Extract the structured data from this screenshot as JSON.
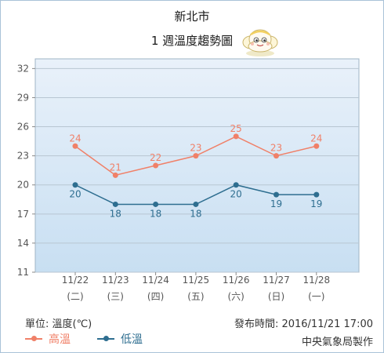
{
  "header": {
    "city": "新北市",
    "subtitle": "1 週溫度趨勢圖"
  },
  "footer": {
    "unit_label": "單位: 溫度(℃)",
    "published_label": "發布時間: 2016/11/21 17:00",
    "agency": "中央氣象局製作"
  },
  "colors": {
    "high": "#f08068",
    "low": "#2e6e90",
    "plot_top": "#e9f1fa",
    "plot_bottom": "#c8dff2",
    "grid": "#b8c6d2",
    "axis_text": "#555555"
  },
  "mascot_icon": "cloud-mascot-icon",
  "chart_data": {
    "type": "line",
    "categories": [
      "11/22",
      "11/23",
      "11/24",
      "11/25",
      "11/26",
      "11/27",
      "11/28"
    ],
    "weekdays": [
      "(二)",
      "(三)",
      "(四)",
      "(五)",
      "(六)",
      "(日)",
      "(一)"
    ],
    "series": [
      {
        "name": "高溫",
        "values": [
          24,
          21,
          22,
          23,
          25,
          23,
          24
        ]
      },
      {
        "name": "低溫",
        "values": [
          20,
          18,
          18,
          18,
          20,
          19,
          19
        ]
      }
    ],
    "y_ticks": [
      11,
      14,
      17,
      20,
      23,
      26,
      29,
      32
    ],
    "ylim": [
      11,
      33
    ],
    "grid": true,
    "legend_position": "bottom-left"
  }
}
